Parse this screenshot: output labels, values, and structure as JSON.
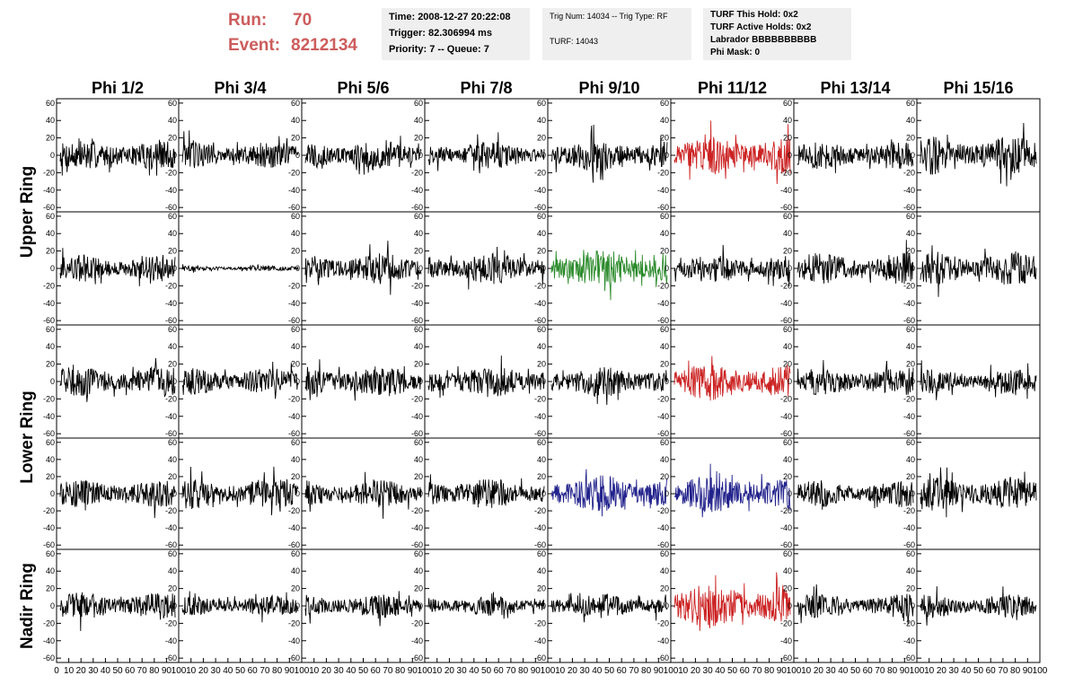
{
  "header": {
    "run_label": "Run:",
    "run_value": "70",
    "event_label": "Event:",
    "event_value": "8212134",
    "info1": [
      "Time: 2008-12-27 20:22:08",
      "Trigger: 82.306994 ms",
      "Priority: 7 -- Queue: 7"
    ],
    "info2": [
      "Trig Num: 14034 -- Trig Type: RF",
      "TURF: 14043"
    ],
    "info3": [
      "TURF This Hold: 0x2",
      "TURF Active Holds: 0x2",
      "Labrador BBBBBBBBBB",
      "Phi Mask: 0"
    ]
  },
  "colors": {
    "red": "#cc2222",
    "green": "#2a8a2a",
    "blue": "#22228c",
    "black": "#000000",
    "title_red": "#cd5c5c"
  },
  "chart_data": {
    "type": "line",
    "columns": [
      "Phi 1/2",
      "Phi 3/4",
      "Phi 5/6",
      "Phi 7/8",
      "Phi 9/10",
      "Phi 11/12",
      "Phi 13/14",
      "Phi 15/16"
    ],
    "row_groups": [
      {
        "label": "Upper Ring",
        "rows": [
          0,
          1
        ]
      },
      {
        "label": "Lower Ring",
        "rows": [
          2,
          3
        ]
      },
      {
        "label": "Nadir Ring",
        "rows": [
          4
        ]
      }
    ],
    "ylim": [
      -65,
      65
    ],
    "yticks": [
      -60,
      -40,
      -20,
      0,
      20,
      40,
      60
    ],
    "xlim": [
      0,
      100
    ],
    "xticks": [
      0,
      10,
      20,
      30,
      40,
      50,
      60,
      70,
      80,
      90,
      100
    ],
    "trace_colors": [
      [
        "black",
        "black",
        "black",
        "black",
        "black",
        "red",
        "black",
        "black"
      ],
      [
        "black",
        "black",
        "black",
        "black",
        "green",
        "black",
        "black",
        "black"
      ],
      [
        "black",
        "black",
        "black",
        "black",
        "black",
        "red",
        "black",
        "black"
      ],
      [
        "black",
        "black",
        "black",
        "black",
        "blue",
        "blue",
        "black",
        "black"
      ],
      [
        "black",
        "black",
        "black",
        "black",
        "black",
        "red",
        "black",
        "black"
      ]
    ],
    "trace_amplitudes": [
      [
        18,
        16,
        18,
        16,
        20,
        22,
        16,
        22
      ],
      [
        16,
        3,
        18,
        18,
        22,
        16,
        18,
        20
      ],
      [
        18,
        16,
        18,
        18,
        18,
        22,
        16,
        14
      ],
      [
        16,
        18,
        16,
        18,
        22,
        22,
        16,
        20
      ],
      [
        16,
        12,
        14,
        12,
        14,
        26,
        14,
        14
      ]
    ]
  }
}
